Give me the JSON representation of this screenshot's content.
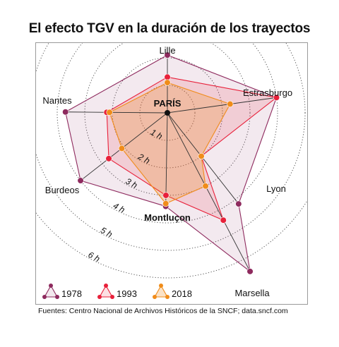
{
  "chart_data": {
    "type": "radar",
    "title": "El efecto TGV en la duración de los trayectos",
    "center_label": "PARÍS",
    "unit": "h",
    "rings": [
      "1 h",
      "2 h",
      "3 h",
      "4 h",
      "5 h",
      "6 h"
    ],
    "categories": [
      "Lille",
      "Estrasburgo",
      "Lyon",
      "Marsella",
      "Montluçon",
      "Burdeos",
      "Nantes"
    ],
    "series": [
      {
        "name": "1978",
        "color": "#8e2a5e",
        "fill": "rgba(142,42,94,0.10)",
        "values": [
          2.1,
          4.0,
          4.2,
          6.5,
          3.4,
          4.0,
          3.7
        ]
      },
      {
        "name": "1993",
        "color": "#e8203a",
        "fill": "rgba(232,32,58,0.14)",
        "values": [
          1.3,
          4.0,
          2.0,
          4.4,
          3.0,
          2.7,
          2.2
        ]
      },
      {
        "name": "2018",
        "color": "#f08c1a",
        "fill": "rgba(240,140,26,0.25)",
        "values": [
          1.1,
          2.3,
          2.0,
          3.0,
          3.3,
          2.1,
          2.1
        ]
      }
    ]
  },
  "source": "Fuentes: Centro Nacional de Archivos Históricos de la SNCF; data.sncf.com"
}
